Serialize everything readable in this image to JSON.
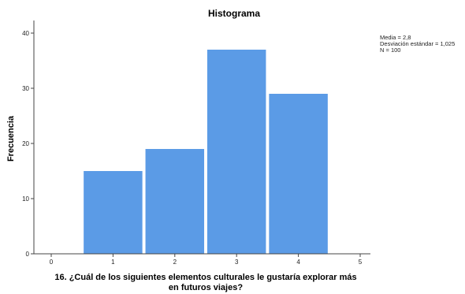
{
  "chart_data": {
    "type": "bar",
    "title": "Histograma",
    "xlabel_lines": [
      "16. ¿Cuál de los siguientes elementos culturales le gustaría explorar más",
      "en futuros viajes?"
    ],
    "ylabel": "Frecuencia",
    "bins": [
      {
        "x": 1,
        "value": 15
      },
      {
        "x": 2,
        "value": 19
      },
      {
        "x": 3,
        "value": 37
      },
      {
        "x": 4,
        "value": 29
      }
    ],
    "bin_width": 0.95,
    "xlim": [
      0,
      5
    ],
    "xticks": [
      0,
      1,
      2,
      3,
      4,
      5
    ],
    "ylim": [
      0,
      40
    ],
    "yticks": [
      0,
      10,
      20,
      30,
      40
    ],
    "grid": false,
    "bar_color": "#5b9be6",
    "stats_lines": [
      "Media = 2,8",
      "Desviación estándar = 1,025",
      "N = 100"
    ],
    "stats_placement": "top-right"
  }
}
